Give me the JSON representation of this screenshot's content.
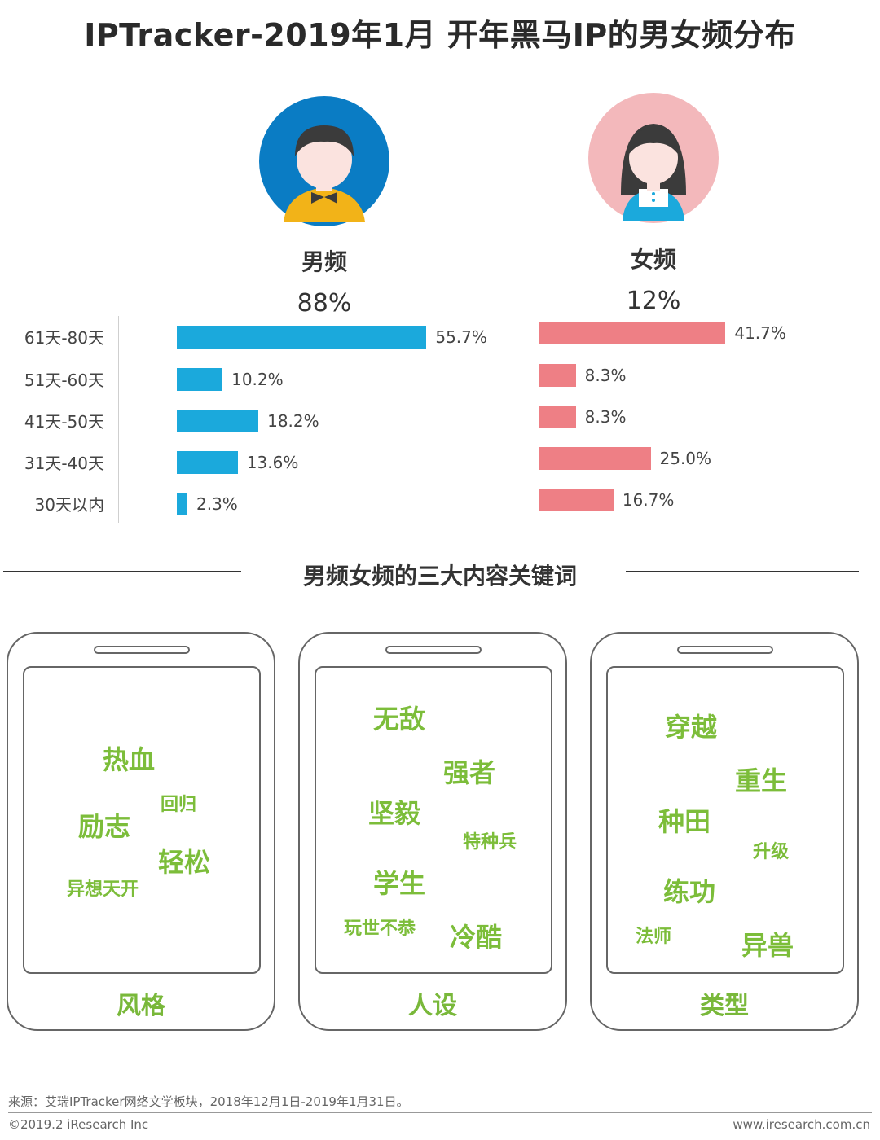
{
  "title": "IPTracker-2019年1月 开年黑马IP的男女频分布",
  "colors": {
    "male": "#1ba9dc",
    "female": "#ee7f85",
    "keyword": "#7cbd3a"
  },
  "chart_data": {
    "type": "bar",
    "orientation": "horizontal",
    "categories": [
      "61天-80天",
      "51天-60天",
      "41天-50天",
      "31天-40天",
      "30天以内"
    ],
    "series": [
      {
        "name": "男频",
        "share": "88%",
        "values": [
          55.7,
          10.2,
          18.2,
          13.6,
          2.3
        ],
        "labels": [
          "55.7%",
          "10.2%",
          "18.2%",
          "13.6%",
          "2.3%"
        ]
      },
      {
        "name": "女频",
        "share": "12%",
        "values": [
          41.7,
          8.3,
          8.3,
          25.0,
          16.7
        ],
        "labels": [
          "41.7%",
          "8.3%",
          "8.3%",
          "25.0%",
          "16.7%"
        ]
      }
    ],
    "unit": "%"
  },
  "section_title": "男频女频的三大内容关键词",
  "phones": [
    {
      "label": "风格",
      "keywords": [
        "热血",
        "回归",
        "励志",
        "轻松",
        "异想天开"
      ]
    },
    {
      "label": "人设",
      "keywords": [
        "无敌",
        "强者",
        "坚毅",
        "特种兵",
        "学生",
        "玩世不恭",
        "冷酷"
      ]
    },
    {
      "label": "类型",
      "keywords": [
        "穿越",
        "重生",
        "种田",
        "升级",
        "练功",
        "法师",
        "异兽"
      ]
    }
  ],
  "footer": {
    "source": "来源：艾瑞IPTracker网络文学板块，2018年12月1日-2019年1月31日。",
    "copyright": "©2019.2 iResearch Inc",
    "site": "www.iresearch.com.cn"
  }
}
